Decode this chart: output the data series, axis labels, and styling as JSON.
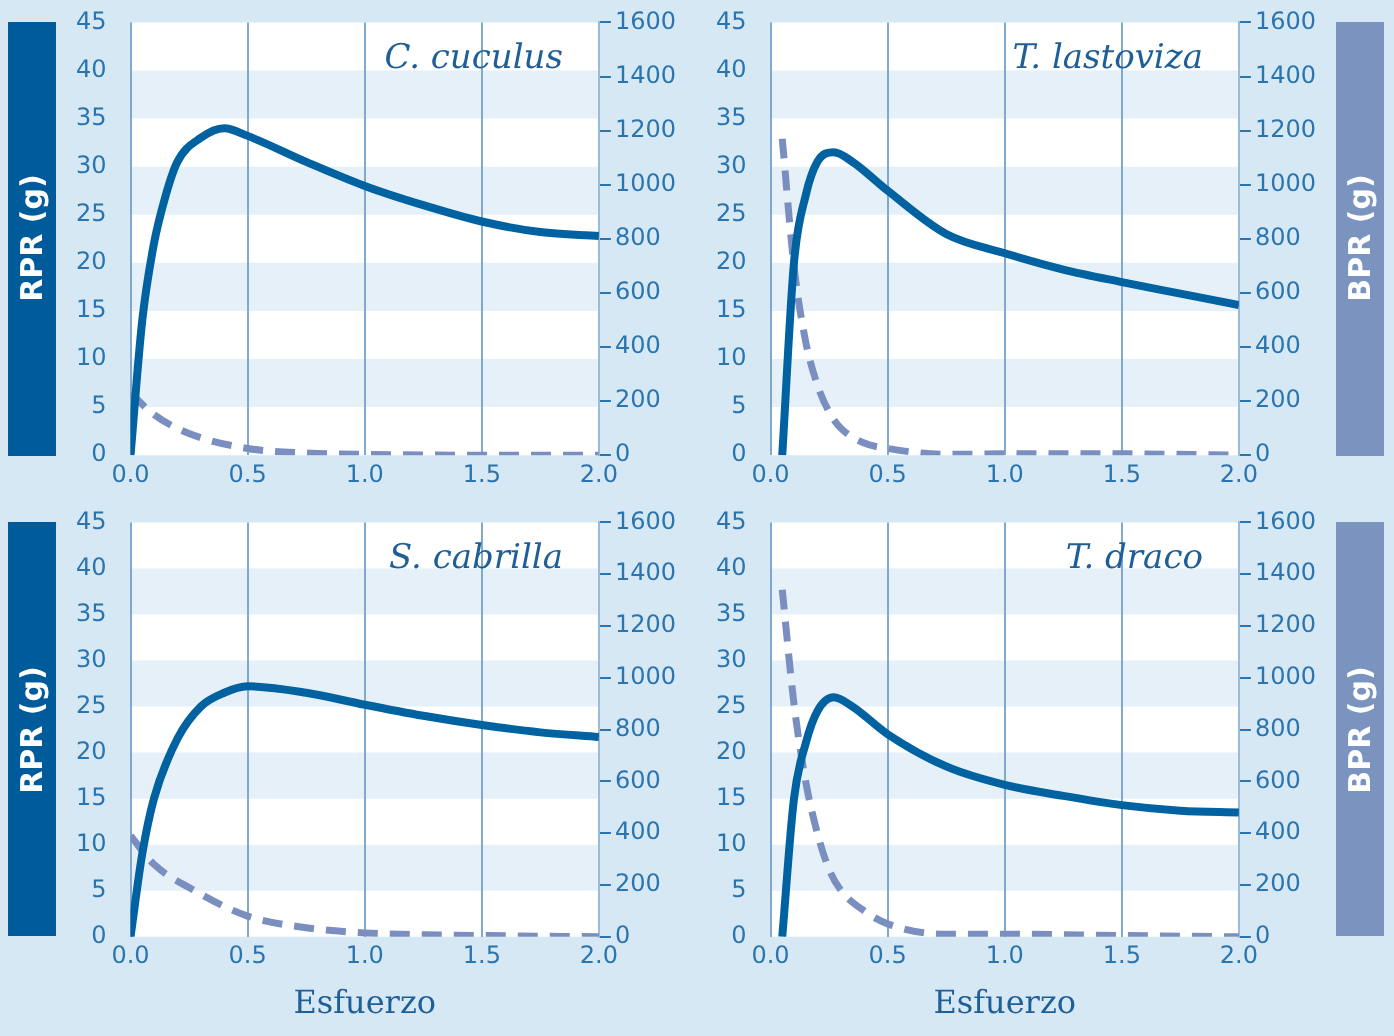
{
  "chart_data": [
    {
      "type": "line",
      "title": "C. cuculus",
      "ylabel": "RPR (g)",
      "xlim": [
        0,
        2
      ],
      "xticks": [
        {
          "value": 0,
          "label": "0.0"
        },
        {
          "value": 0.5,
          "label": "0.5"
        },
        {
          "value": 1,
          "label": "1.0"
        },
        {
          "value": 1.5,
          "label": "1.5"
        },
        {
          "value": 2,
          "label": "2.0"
        }
      ],
      "ylim": [
        0,
        45
      ],
      "yticks": [
        0,
        5,
        10,
        15,
        20,
        25,
        30,
        35,
        40,
        45
      ],
      "y2lim": [
        0,
        1600
      ],
      "y2ticks": [
        0,
        200,
        400,
        600,
        800,
        1000,
        1200,
        1400,
        1600
      ],
      "grid": true,
      "series": [
        {
          "color": "#0062a0",
          "line_style": "solid",
          "x": [
            0,
            0.05,
            0.1,
            0.15,
            0.2,
            0.3,
            0.4,
            0.5,
            0.75,
            1,
            1.25,
            1.5,
            1.75,
            2
          ],
          "values": [
            0,
            14,
            22,
            27,
            30.5,
            33,
            34,
            33.2,
            30.5,
            28,
            26,
            24.3,
            23.2,
            22.8
          ]
        },
        {
          "color": "#7a8fc0",
          "line_style": "dashed",
          "axis": "y2",
          "x": [
            0,
            0.1,
            0.25,
            0.5,
            0.75,
            1,
            1.5,
            2
          ],
          "values": [
            230,
            150,
            80,
            25,
            8,
            3,
            0,
            0
          ]
        }
      ]
    },
    {
      "type": "line",
      "title": "T. lastoviza",
      "y2label": "BPR (g)",
      "xlim": [
        0,
        2
      ],
      "xticks": [
        {
          "value": 0,
          "label": "0.0"
        },
        {
          "value": 0.5,
          "label": "0.5"
        },
        {
          "value": 1,
          "label": "1.0"
        },
        {
          "value": 1.5,
          "label": "1.5"
        },
        {
          "value": 2,
          "label": "2.0"
        }
      ],
      "ylim": [
        0,
        45
      ],
      "yticks": [
        0,
        5,
        10,
        15,
        20,
        25,
        30,
        35,
        40,
        45
      ],
      "y2lim": [
        0,
        1600
      ],
      "y2ticks": [
        0,
        200,
        400,
        600,
        800,
        1000,
        1200,
        1400,
        1600
      ],
      "grid": true,
      "series": [
        {
          "color": "#0062a0",
          "line_style": "solid",
          "x": [
            0.05,
            0.1,
            0.15,
            0.2,
            0.27,
            0.35,
            0.5,
            0.75,
            1,
            1.25,
            1.5,
            1.75,
            2
          ],
          "values": [
            0,
            20,
            27,
            30.5,
            31.5,
            30.5,
            27.5,
            23,
            21,
            19.3,
            18,
            16.8,
            15.6
          ]
        },
        {
          "color": "#7a8fc0",
          "line_style": "dashed",
          "axis": "y2",
          "x": [
            0.05,
            0.1,
            0.15,
            0.2,
            0.25,
            0.3,
            0.4,
            0.5,
            0.75,
            1,
            1.5,
            2
          ],
          "values": [
            1170,
            700,
            420,
            260,
            160,
            100,
            45,
            25,
            3,
            5,
            5,
            0
          ]
        }
      ]
    },
    {
      "type": "line",
      "title": "S. cabrilla",
      "ylabel": "RPR (g)",
      "xlabel": "Esfuerzo",
      "xlim": [
        0,
        2
      ],
      "xticks": [
        {
          "value": 0,
          "label": "0.0"
        },
        {
          "value": 0.5,
          "label": "0.5"
        },
        {
          "value": 1,
          "label": "1.0"
        },
        {
          "value": 1.5,
          "label": "1.5"
        },
        {
          "value": 2,
          "label": "2.0"
        }
      ],
      "ylim": [
        0,
        45
      ],
      "yticks": [
        0,
        5,
        10,
        15,
        20,
        25,
        30,
        35,
        40,
        45
      ],
      "y2lim": [
        0,
        1600
      ],
      "y2ticks": [
        0,
        200,
        400,
        600,
        800,
        1000,
        1200,
        1400,
        1600
      ],
      "grid": true,
      "series": [
        {
          "color": "#0062a0",
          "line_style": "solid",
          "x": [
            0,
            0.05,
            0.1,
            0.2,
            0.3,
            0.4,
            0.5,
            0.75,
            1,
            1.25,
            1.5,
            1.75,
            2
          ],
          "values": [
            0,
            9,
            15,
            21.5,
            25,
            26.5,
            27.2,
            26.5,
            25.2,
            24,
            23,
            22.2,
            21.7
          ]
        },
        {
          "color": "#7a8fc0",
          "line_style": "dashed",
          "axis": "y2",
          "x": [
            0,
            0.1,
            0.25,
            0.5,
            0.75,
            1,
            1.5,
            2
          ],
          "values": [
            390,
            280,
            190,
            80,
            35,
            15,
            5,
            0
          ]
        }
      ]
    },
    {
      "type": "line",
      "title": "T. draco",
      "y2label": "BPR (g)",
      "xlabel": "Esfuerzo",
      "xlim": [
        0,
        2
      ],
      "xticks": [
        {
          "value": 0,
          "label": "0.0"
        },
        {
          "value": 0.5,
          "label": "0.5"
        },
        {
          "value": 1,
          "label": "1.0"
        },
        {
          "value": 1.5,
          "label": "1.5"
        },
        {
          "value": 2,
          "label": "2.0"
        }
      ],
      "ylim": [
        0,
        45
      ],
      "yticks": [
        0,
        5,
        10,
        15,
        20,
        25,
        30,
        35,
        40,
        45
      ],
      "y2lim": [
        0,
        1600
      ],
      "y2ticks": [
        0,
        200,
        400,
        600,
        800,
        1000,
        1200,
        1400,
        1600
      ],
      "grid": true,
      "series": [
        {
          "color": "#0062a0",
          "line_style": "solid",
          "x": [
            0.05,
            0.1,
            0.15,
            0.2,
            0.27,
            0.35,
            0.5,
            0.75,
            1,
            1.25,
            1.5,
            1.75,
            2
          ],
          "values": [
            0,
            15,
            21,
            24.5,
            26,
            25,
            22,
            18.5,
            16.5,
            15.3,
            14.3,
            13.7,
            13.5
          ]
        },
        {
          "color": "#7a8fc0",
          "line_style": "dashed",
          "axis": "y2",
          "x": [
            0.05,
            0.1,
            0.15,
            0.2,
            0.25,
            0.3,
            0.4,
            0.5,
            0.75,
            1,
            1.5,
            2
          ],
          "values": [
            1340,
            900,
            600,
            400,
            260,
            180,
            100,
            50,
            10,
            10,
            5,
            0
          ]
        }
      ]
    }
  ]
}
